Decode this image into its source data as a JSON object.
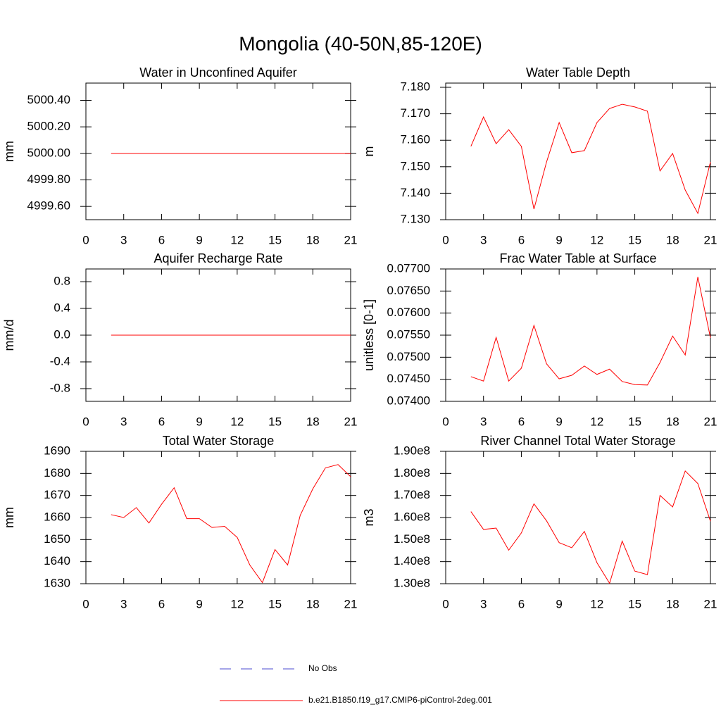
{
  "title": "Mongolia (40-50N,85-120E)",
  "legend": [
    {
      "name": "No Obs",
      "color": "#4b4bd0",
      "dashed": true
    },
    {
      "name": "b.e21.B1850.f19_g17.CMIP6-piControl-2deg.001",
      "color": "#ff0000",
      "dashed": false
    }
  ],
  "chart_data": [
    {
      "type": "line",
      "title": "Water in Unconfined Aquifer",
      "y_label": "mm",
      "x": [
        2,
        3,
        4,
        5,
        6,
        7,
        8,
        9,
        10,
        11,
        12,
        13,
        14,
        15,
        16,
        17,
        18,
        19,
        20,
        21
      ],
      "xlim": [
        0,
        21
      ],
      "xticks": [
        0,
        3,
        6,
        9,
        12,
        15,
        18,
        21
      ],
      "ylim": [
        4999.5,
        5000.53
      ],
      "yticks": [
        {
          "value": 4999.6,
          "label": "4999.60"
        },
        {
          "value": 4999.8,
          "label": "4999.80"
        },
        {
          "value": 5000,
          "label": "5000.00"
        },
        {
          "value": 5000.2,
          "label": "5000.20"
        },
        {
          "value": 5000.4,
          "label": "5000.40"
        }
      ],
      "series": [
        {
          "color": "#ff0000",
          "values": [
            5000,
            5000,
            5000,
            5000,
            5000,
            5000,
            5000,
            5000,
            5000,
            5000,
            5000,
            5000,
            5000,
            5000,
            5000,
            5000,
            5000,
            5000,
            5000,
            5000
          ]
        }
      ]
    },
    {
      "type": "line",
      "title": "Water Table Depth",
      "y_label": "m",
      "x": [
        2,
        3,
        4,
        5,
        6,
        7,
        8,
        9,
        10,
        11,
        12,
        13,
        14,
        15,
        16,
        17,
        18,
        19,
        20,
        21
      ],
      "xlim": [
        0,
        21
      ],
      "xticks": [
        0,
        3,
        6,
        9,
        12,
        15,
        18,
        21
      ],
      "ylim": [
        7.13,
        7.1816
      ],
      "yticks": [
        {
          "value": 7.13,
          "label": "7.130"
        },
        {
          "value": 7.14,
          "label": "7.140"
        },
        {
          "value": 7.15,
          "label": "7.150"
        },
        {
          "value": 7.16,
          "label": "7.160"
        },
        {
          "value": 7.17,
          "label": "7.170"
        },
        {
          "value": 7.18,
          "label": "7.180"
        }
      ],
      "series": [
        {
          "color": "#ff0000",
          "values": [
            7.1577,
            7.1688,
            7.1587,
            7.164,
            7.1577,
            7.134,
            7.1518,
            7.1667,
            7.1553,
            7.1561,
            7.1667,
            7.172,
            7.1736,
            7.1726,
            7.171,
            7.1484,
            7.155,
            7.1412,
            7.1324,
            7.1518
          ]
        }
      ]
    },
    {
      "type": "line",
      "title": "Aquifer Recharge Rate",
      "y_label": "mm/d",
      "x": [
        2,
        3,
        4,
        5,
        6,
        7,
        8,
        9,
        10,
        11,
        12,
        13,
        14,
        15,
        16,
        17,
        18,
        19,
        20,
        21
      ],
      "xlim": [
        0,
        21
      ],
      "xticks": [
        0,
        3,
        6,
        9,
        12,
        15,
        18,
        21
      ],
      "ylim": [
        -0.99,
        0.99
      ],
      "yticks": [
        -0.8,
        -0.4,
        {
          "value": 0,
          "label": "0.0"
        },
        0.4,
        0.8
      ],
      "series": [
        {
          "color": "#ff0000",
          "values": [
            0,
            0,
            0,
            0,
            0,
            0,
            0,
            0,
            0,
            0,
            0,
            0,
            0,
            0,
            0,
            0,
            0,
            0,
            0,
            0
          ]
        }
      ]
    },
    {
      "type": "line",
      "title": "Frac Water Table at Surface",
      "y_label": "unitless [0-1]",
      "x": [
        2,
        3,
        4,
        5,
        6,
        7,
        8,
        9,
        10,
        11,
        12,
        13,
        14,
        15,
        16,
        17,
        18,
        19,
        20,
        21
      ],
      "xlim": [
        0,
        21
      ],
      "xticks": [
        0,
        3,
        6,
        9,
        12,
        15,
        18,
        21
      ],
      "ylim": [
        0.074,
        0.077
      ],
      "yticks": [
        {
          "value": 0.074,
          "label": "0.07400"
        },
        {
          "value": 0.0745,
          "label": "0.07450"
        },
        {
          "value": 0.075,
          "label": "0.07500"
        },
        {
          "value": 0.0755,
          "label": "0.07550"
        },
        {
          "value": 0.076,
          "label": "0.07600"
        },
        {
          "value": 0.0765,
          "label": "0.07650"
        },
        {
          "value": 0.077,
          "label": "0.07700"
        }
      ],
      "series": [
        {
          "color": "#ff0000",
          "values": [
            0.07456,
            0.07446,
            0.07545,
            0.07446,
            0.07475,
            0.07572,
            0.07485,
            0.07451,
            0.07459,
            0.0748,
            0.07461,
            0.07473,
            0.07445,
            0.07438,
            0.07437,
            0.07488,
            0.07548,
            0.07505,
            0.07682,
            0.07544
          ]
        }
      ]
    },
    {
      "type": "line",
      "title": "Total Water Storage",
      "y_label": "mm",
      "x": [
        2,
        3,
        4,
        5,
        6,
        7,
        8,
        9,
        10,
        11,
        12,
        13,
        14,
        15,
        16,
        17,
        18,
        19,
        20,
        21
      ],
      "xlim": [
        0,
        21
      ],
      "xticks": [
        0,
        3,
        6,
        9,
        12,
        15,
        18,
        21
      ],
      "ylim": [
        1630,
        1690
      ],
      "yticks": [
        1630,
        1640,
        1650,
        1660,
        1670,
        1680,
        1690
      ],
      "series": [
        {
          "color": "#ff0000",
          "values": [
            1661.3,
            1660,
            1664.5,
            1657.5,
            1666,
            1673.5,
            1659.5,
            1659.5,
            1655.5,
            1656,
            1651,
            1638.5,
            1630.5,
            1645.5,
            1638.5,
            1661,
            1673,
            1682.5,
            1684,
            1678.5
          ]
        }
      ]
    },
    {
      "type": "line",
      "title": "River Channel Total Water Storage",
      "y_label": "m3",
      "x": [
        2,
        3,
        4,
        5,
        6,
        7,
        8,
        9,
        10,
        11,
        12,
        13,
        14,
        15,
        16,
        17,
        18,
        19,
        20,
        21
      ],
      "xlim": [
        0,
        21
      ],
      "xticks": [
        0,
        3,
        6,
        9,
        12,
        15,
        18,
        21
      ],
      "ylim": [
        130000000,
        190000000
      ],
      "yticks": [
        {
          "value": 130000000,
          "label": "1.30e8"
        },
        {
          "value": 140000000,
          "label": "1.40e8"
        },
        {
          "value": 150000000,
          "label": "1.50e8"
        },
        {
          "value": 160000000,
          "label": "1.60e8"
        },
        {
          "value": 170000000,
          "label": "1.70e8"
        },
        {
          "value": 180000000,
          "label": "1.80e8"
        },
        {
          "value": 190000000,
          "label": "1.90e8"
        }
      ],
      "series": [
        {
          "color": "#ff0000",
          "values": [
            162700000,
            154600000,
            155200000,
            145200000,
            153000000,
            166200000,
            158500000,
            148600000,
            146300000,
            153700000,
            139500000,
            130200000,
            149300000,
            135700000,
            134100000,
            170000000,
            164800000,
            181100000,
            175400000,
            158300000
          ]
        }
      ]
    }
  ]
}
